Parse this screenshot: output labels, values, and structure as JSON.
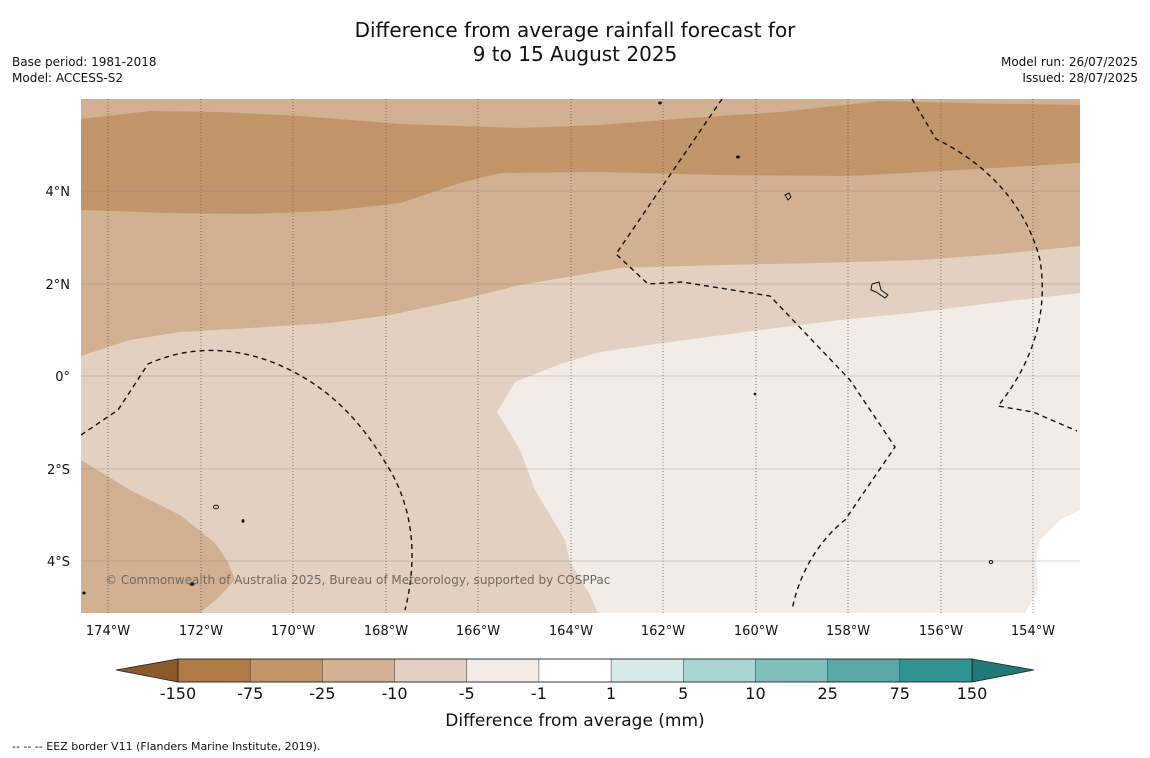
{
  "title": {
    "line1": "Difference from average rainfall forecast for",
    "line2": "9 to 15 August 2025"
  },
  "meta": {
    "base_period": "Base period: 1981-2018",
    "model": "Model: ACCESS-S2",
    "model_run": "Model run: 26/07/2025",
    "issued": "Issued: 28/07/2025"
  },
  "map": {
    "lon_labels": [
      "174°W",
      "172°W",
      "170°W",
      "168°W",
      "166°W",
      "164°W",
      "162°W",
      "160°W",
      "158°W",
      "156°W",
      "154°W"
    ],
    "lat_labels": [
      "4°N",
      "2°N",
      "0°",
      "2°S",
      "4°S"
    ],
    "copyright": "© Commonwealth of Australia 2025, Bureau of Meteorology, supported by COSPPac"
  },
  "colorbar": {
    "ticks": [
      "-150",
      "-75",
      "-25",
      "-10",
      "-5",
      "-1",
      "1",
      "5",
      "10",
      "25",
      "75",
      "150"
    ],
    "label": "Difference from average (mm)",
    "colors": [
      "#b07a44",
      "#c29568",
      "#d2b092",
      "#e2d0c0",
      "#f3ebe5",
      "#ffffff",
      "#d4ebe8",
      "#a9d5d2",
      "#7fbfbc",
      "#57a8a6",
      "#2f9391"
    ],
    "extend_low": "#8a5a2b",
    "extend_high": "#1e7a78"
  },
  "footnote": "--  --  -- EEZ border V11 (Flanders Marine Institute, 2019)."
}
